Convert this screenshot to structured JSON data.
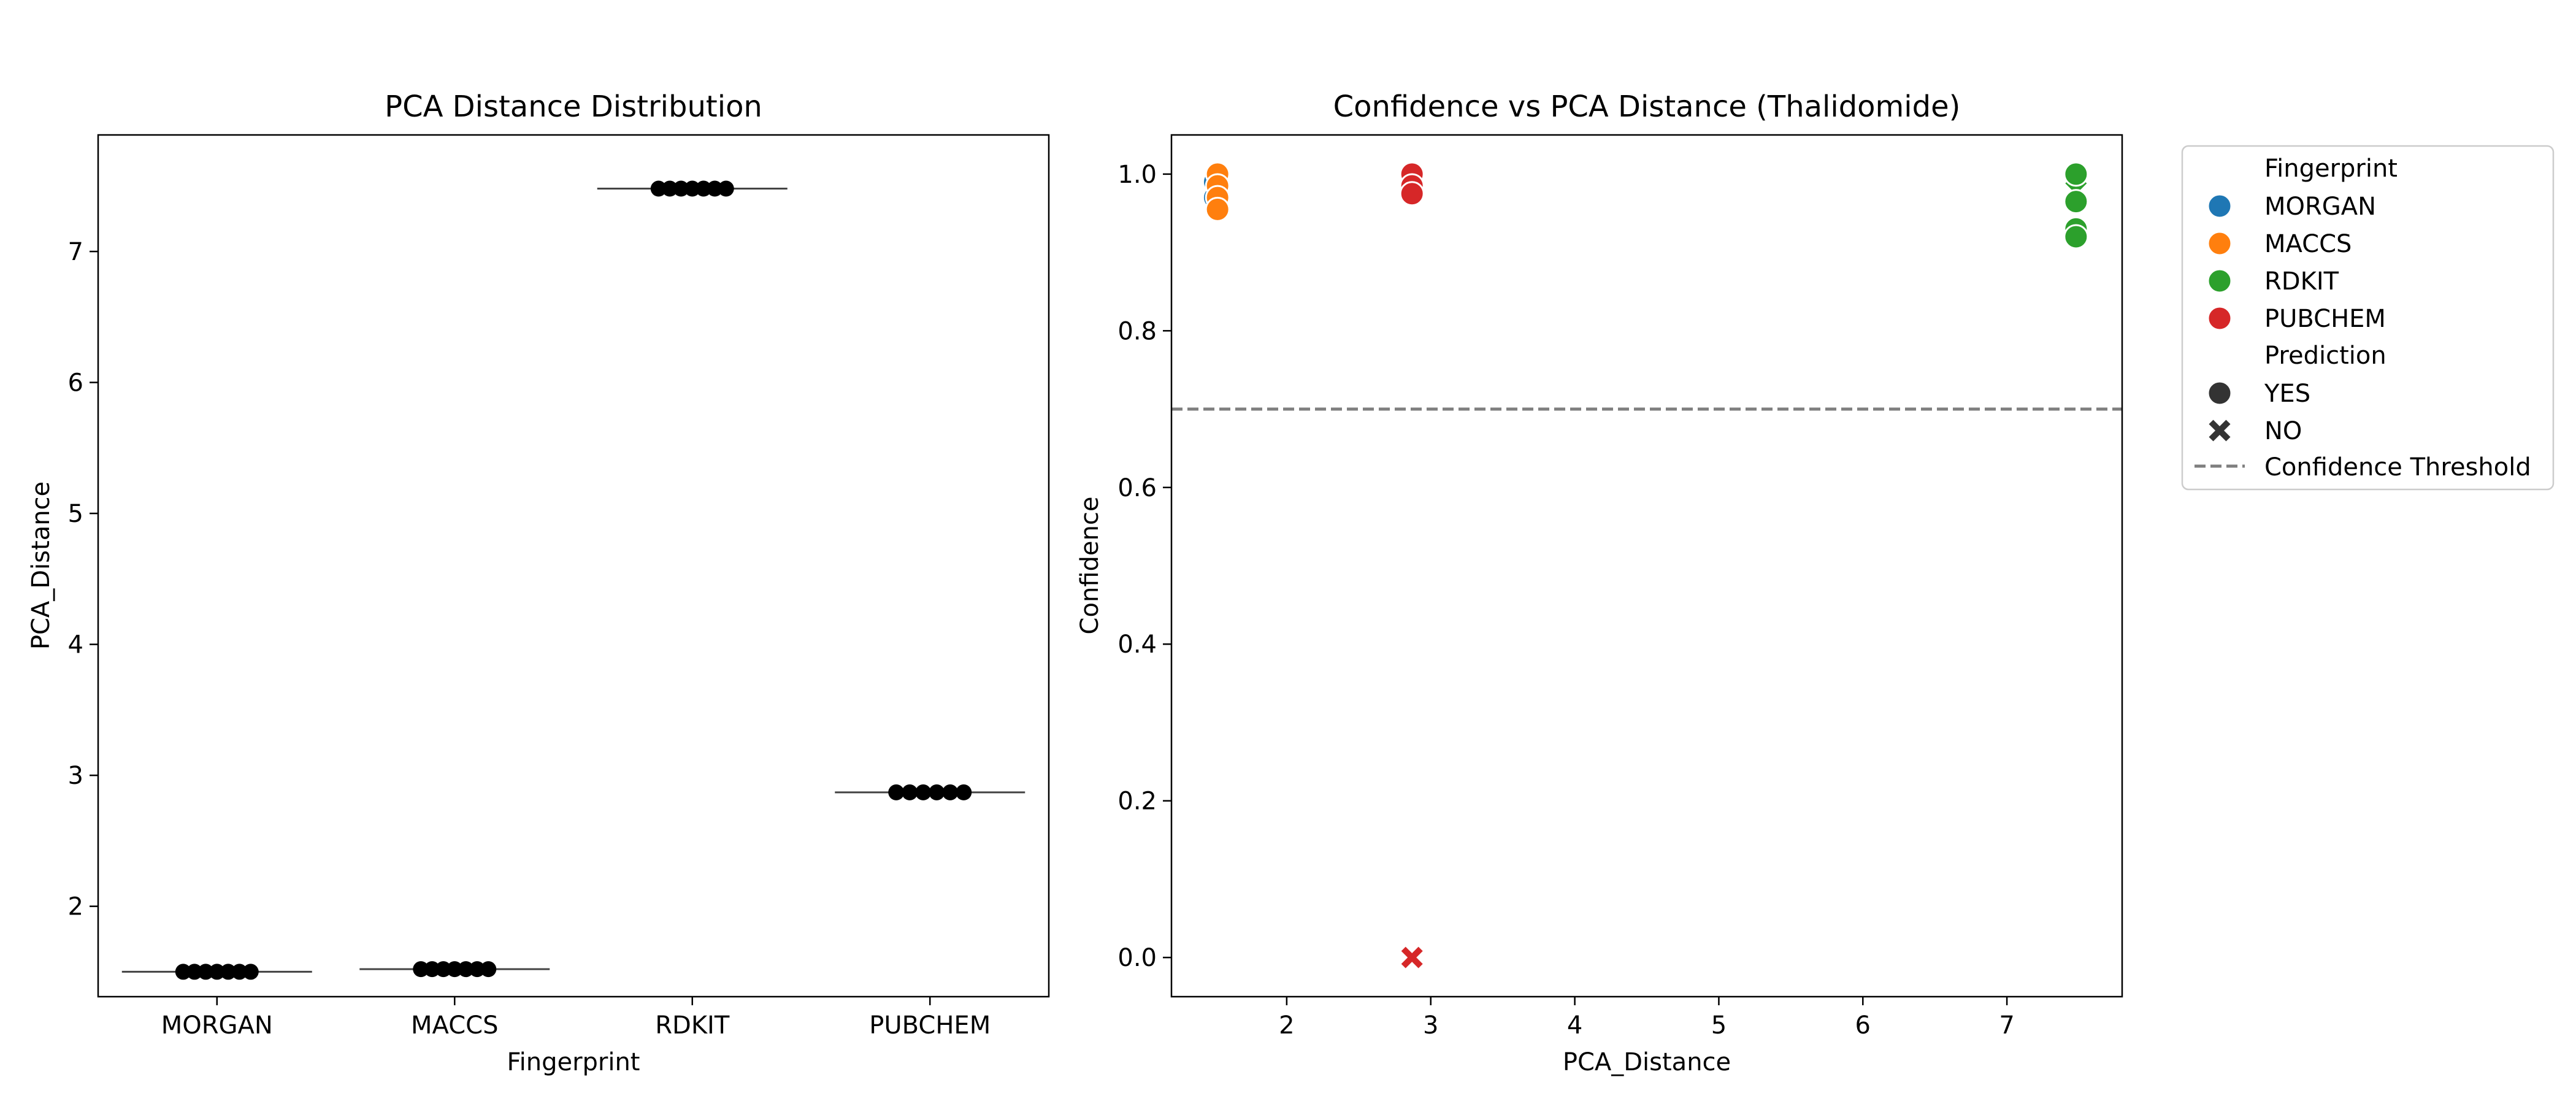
{
  "chart_data": [
    {
      "type": "box",
      "title": "PCA Distance Distribution",
      "xlabel": "Fingerprint",
      "ylabel": "PCA_Distance",
      "categories": [
        "MORGAN",
        "MACCS",
        "RDKIT",
        "PUBCHEM"
      ],
      "values": [
        [
          1.5,
          1.5,
          1.5,
          1.5,
          1.5,
          1.5,
          1.5
        ],
        [
          1.52,
          1.52,
          1.52,
          1.52,
          1.52,
          1.52,
          1.52
        ],
        [
          7.48,
          7.48,
          7.48,
          7.48,
          7.48,
          7.48,
          7.48
        ],
        [
          2.87,
          2.87,
          2.87,
          2.87,
          2.87,
          2.87
        ]
      ],
      "ylim": [
        1.31,
        7.89
      ],
      "yticks": [
        2,
        3,
        4,
        5,
        6,
        7
      ],
      "grid": false,
      "colors": {
        "median": "#444444",
        "points": "#000000"
      }
    },
    {
      "type": "scatter",
      "title": "Confidence vs PCA Distance (Thalidomide)",
      "xlabel": "PCA_Distance",
      "ylabel": "Confidence",
      "xlim": [
        1.2,
        7.8
      ],
      "ylim": [
        -0.05,
        1.05
      ],
      "xticks": [
        2,
        3,
        4,
        5,
        6,
        7
      ],
      "yticks": [
        "0.0",
        "0.2",
        "0.4",
        "0.6",
        "0.8",
        "1.0"
      ],
      "grid": false,
      "threshold": {
        "label": "Confidence Threshold",
        "y": 0.7,
        "color": "#7f7f7f"
      },
      "series": [
        {
          "name": "MORGAN",
          "color": "#1f77b4",
          "points": [
            {
              "x": 1.5,
              "y": 0.97,
              "pred": "YES"
            },
            {
              "x": 1.5,
              "y": 0.99,
              "pred": "YES"
            }
          ]
        },
        {
          "name": "MACCS",
          "color": "#ff7f0e",
          "points": [
            {
              "x": 1.52,
              "y": 1.0,
              "pred": "YES"
            },
            {
              "x": 1.52,
              "y": 0.985,
              "pred": "YES"
            },
            {
              "x": 1.52,
              "y": 0.97,
              "pred": "YES"
            },
            {
              "x": 1.52,
              "y": 0.955,
              "pred": "YES"
            }
          ]
        },
        {
          "name": "RDKIT",
          "color": "#2ca02c",
          "points": [
            {
              "x": 7.48,
              "y": 0.98,
              "pred": "NO"
            },
            {
              "x": 7.48,
              "y": 1.0,
              "pred": "YES"
            },
            {
              "x": 7.48,
              "y": 0.965,
              "pred": "YES"
            },
            {
              "x": 7.48,
              "y": 0.93,
              "pred": "YES"
            },
            {
              "x": 7.48,
              "y": 0.92,
              "pred": "YES"
            }
          ]
        },
        {
          "name": "PUBCHEM",
          "color": "#d62728",
          "points": [
            {
              "x": 2.87,
              "y": 1.0,
              "pred": "YES"
            },
            {
              "x": 2.87,
              "y": 0.985,
              "pred": "YES"
            },
            {
              "x": 2.87,
              "y": 0.975,
              "pred": "YES"
            },
            {
              "x": 2.87,
              "y": 0.0,
              "pred": "NO"
            }
          ]
        }
      ]
    }
  ],
  "legend": {
    "hue_title": "Fingerprint",
    "hue_items": [
      {
        "label": "MORGAN",
        "color": "#1f77b4"
      },
      {
        "label": "MACCS",
        "color": "#ff7f0e"
      },
      {
        "label": "RDKIT",
        "color": "#2ca02c"
      },
      {
        "label": "PUBCHEM",
        "color": "#d62728"
      }
    ],
    "style_title": "Prediction",
    "style_items": [
      {
        "label": "YES",
        "marker": "circle"
      },
      {
        "label": "NO",
        "marker": "x"
      }
    ],
    "threshold_label": "Confidence Threshold",
    "marker_color": "#333333"
  }
}
